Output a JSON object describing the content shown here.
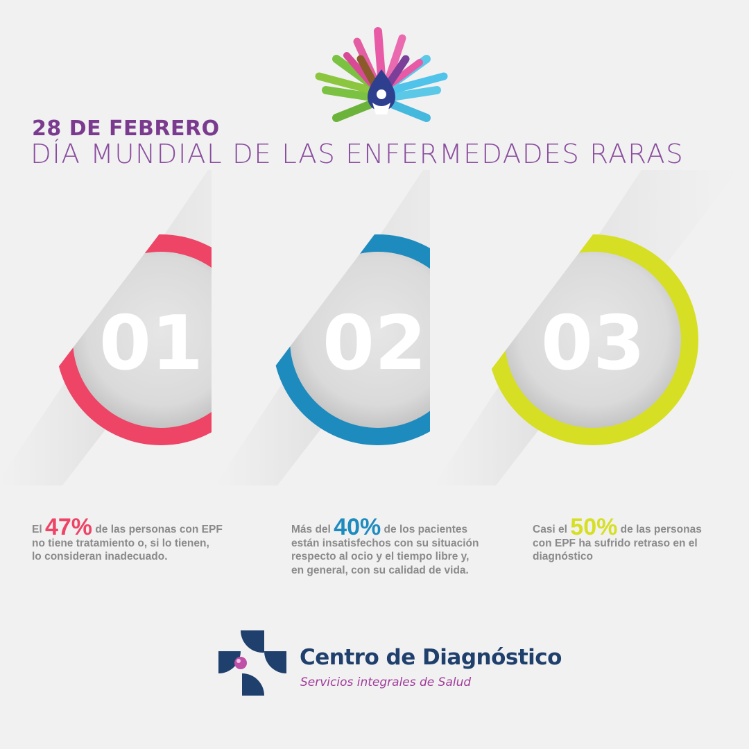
{
  "header": {
    "date": "28 DE FEBRERO",
    "title": "DÍA MUNDIAL DE LAS ENFERMEDADES RARAS"
  },
  "items": [
    {
      "number": "01",
      "color": "#ee4466",
      "prefix": "El",
      "percent": "47%",
      "suffix": "de las personas con EPF",
      "lines": [
        "no tiene tratamiento o, si lo tienen,",
        "lo consideran inadecuado."
      ]
    },
    {
      "number": "02",
      "color": "#1e8bbf",
      "prefix": "Más del",
      "percent": "40%",
      "suffix": "de los pacientes",
      "lines": [
        "están insatisfechos con su situación",
        "respecto al ocio y el tiempo libre y,",
        "en general, con su calidad de vida."
      ]
    },
    {
      "number": "03",
      "color": "#d6df23",
      "prefix": "Casi el",
      "percent": "50%",
      "suffix": "de las personas",
      "lines": [
        "con EPF ha sufrido retraso en el",
        "diagnóstico"
      ]
    }
  ],
  "brand": {
    "name": "Centro de Diagnóstico",
    "tagline": "Servicios integrales de Salud"
  },
  "icons": {
    "top_logo": "rare-disease-hands-logo-icon",
    "brand_logo": "medical-cross-logo-icon"
  }
}
